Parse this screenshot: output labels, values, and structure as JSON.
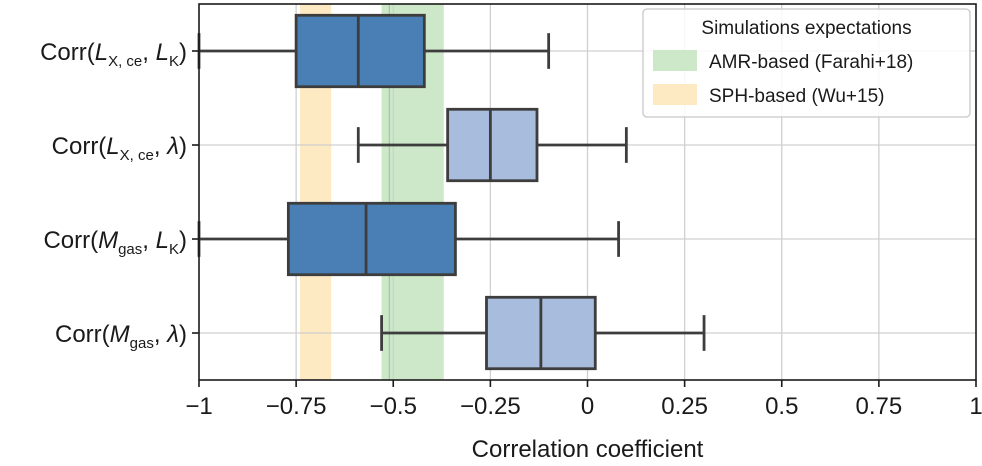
{
  "chart_data": {
    "type": "box",
    "orientation": "horizontal",
    "title": "",
    "xlabel": "Correlation coefficient",
    "ylabel": "",
    "xlim": [
      -1,
      1
    ],
    "xticks": [
      -1,
      -0.75,
      -0.5,
      -0.25,
      0,
      0.25,
      0.5,
      0.75,
      1
    ],
    "xtick_labels": [
      "−1",
      "−0.75",
      "−0.5",
      "−0.25",
      "0",
      "0.25",
      "0.5",
      "0.75",
      "1"
    ],
    "grid": true,
    "categories": [
      {
        "base": "Corr(",
        "sym1": "L",
        "sub1": "X, ce",
        "sym2": "L",
        "sub2": "K",
        "greek2": ""
      },
      {
        "base": "Corr(",
        "sym1": "L",
        "sub1": "X, ce",
        "sym2": "",
        "sub2": "",
        "greek2": "λ"
      },
      {
        "base": "Corr(",
        "sym1": "M",
        "sub1": "gas",
        "sym2": "L",
        "sub2": "K",
        "greek2": ""
      },
      {
        "base": "Corr(",
        "sym1": "M",
        "sub1": "gas",
        "sym2": "",
        "sub2": "",
        "greek2": "λ"
      }
    ],
    "boxes": [
      {
        "whislo": -1.0,
        "q1": -0.75,
        "med": -0.59,
        "q3": -0.42,
        "whishi": -0.1,
        "color": "#4a7fb5"
      },
      {
        "whislo": -0.59,
        "q1": -0.36,
        "med": -0.25,
        "q3": -0.13,
        "whishi": 0.1,
        "color": "#a8bcdd"
      },
      {
        "whislo": -1.0,
        "q1": -0.77,
        "med": -0.57,
        "q3": -0.34,
        "whishi": 0.08,
        "color": "#4a7fb5"
      },
      {
        "whislo": -0.53,
        "q1": -0.26,
        "med": -0.12,
        "q3": 0.02,
        "whishi": 0.3,
        "color": "#a8bcdd"
      }
    ],
    "bands": [
      {
        "name": "AMR-based (Farahi+18)",
        "xmin": -0.53,
        "xmax": -0.37,
        "center": -0.51,
        "color": "#cde8c9",
        "line_color": "#9ccf95"
      },
      {
        "name": "SPH-based (Wu+15)",
        "xmin": -0.74,
        "xmax": -0.66,
        "color": "#fde9c2"
      }
    ],
    "legend": {
      "title": "Simulations expectations",
      "placement": "top-right"
    }
  }
}
